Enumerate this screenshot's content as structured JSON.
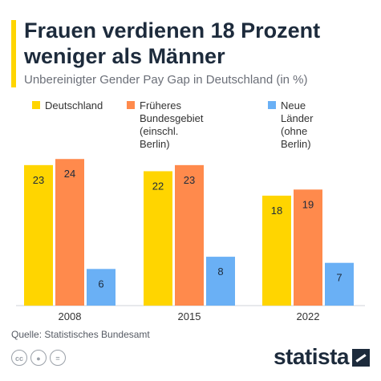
{
  "header": {
    "title": "Frauen verdienen 18 Prozent weniger als Männer",
    "subtitle": "Unbereinigter Gender Pay Gap in Deutschland (in %)"
  },
  "footer": {
    "source": "Quelle: Statistisches Bundesamt",
    "brand": "statista",
    "license_icons": [
      "cc-icon",
      "person-icon",
      "equals-icon"
    ]
  },
  "chart_data": {
    "type": "bar",
    "categories": [
      "2008",
      "2015",
      "2022"
    ],
    "series": [
      {
        "name": "Deutschland",
        "color": "#ffd500",
        "values": [
          23,
          22,
          18
        ]
      },
      {
        "name": "Früheres Bundesgebiet (einschl. Berlin)",
        "color": "#ff8a4c",
        "values": [
          24,
          23,
          19
        ]
      },
      {
        "name": "Neue Länder (ohne Berlin)",
        "color": "#6ab0f5",
        "values": [
          6,
          8,
          7
        ]
      }
    ],
    "legend_labels": [
      "Deutschland",
      "Früheres Bundesgebiet\n(einschl. Berlin)",
      "Neue Länder\n(ohne Berlin)"
    ],
    "ylim": [
      0,
      26
    ],
    "grid": false,
    "legend_position": "top",
    "data_labels": true
  }
}
